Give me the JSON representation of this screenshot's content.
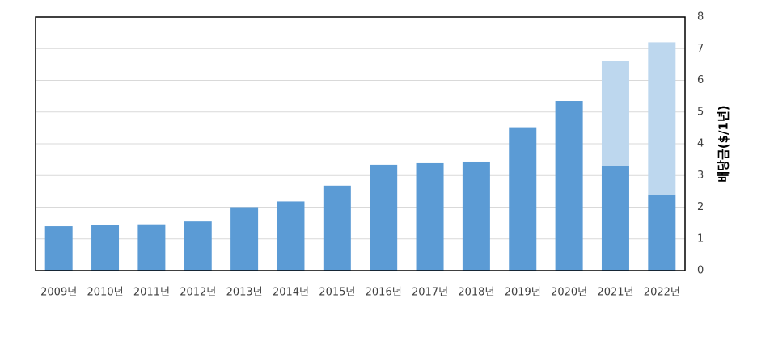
{
  "chart_data": {
    "type": "stacked_bar",
    "y_label": "배당금($/1년)",
    "categories": [
      "2009년",
      "2010년",
      "2011년",
      "2012년",
      "2013년",
      "2014년",
      "2015년",
      "2016년",
      "2017년",
      "2018년",
      "2019년",
      "2020년",
      "2021년",
      "2022년"
    ],
    "series": [
      {
        "color": "#5b9bd5",
        "values": [
          1.4,
          1.43,
          1.46,
          1.55,
          2.0,
          2.18,
          2.68,
          3.34,
          3.39,
          3.44,
          4.52,
          5.35,
          3.3,
          2.4
        ]
      },
      {
        "color": "#bdd7ee",
        "values": [
          null,
          null,
          null,
          null,
          null,
          null,
          null,
          null,
          null,
          null,
          null,
          null,
          3.3,
          4.8
        ]
      }
    ],
    "ylim": [
      0,
      8
    ],
    "yticks": [
      0,
      1,
      2,
      3,
      4,
      5,
      6,
      7,
      8
    ],
    "y_axis_side": "right",
    "grid": true
  }
}
